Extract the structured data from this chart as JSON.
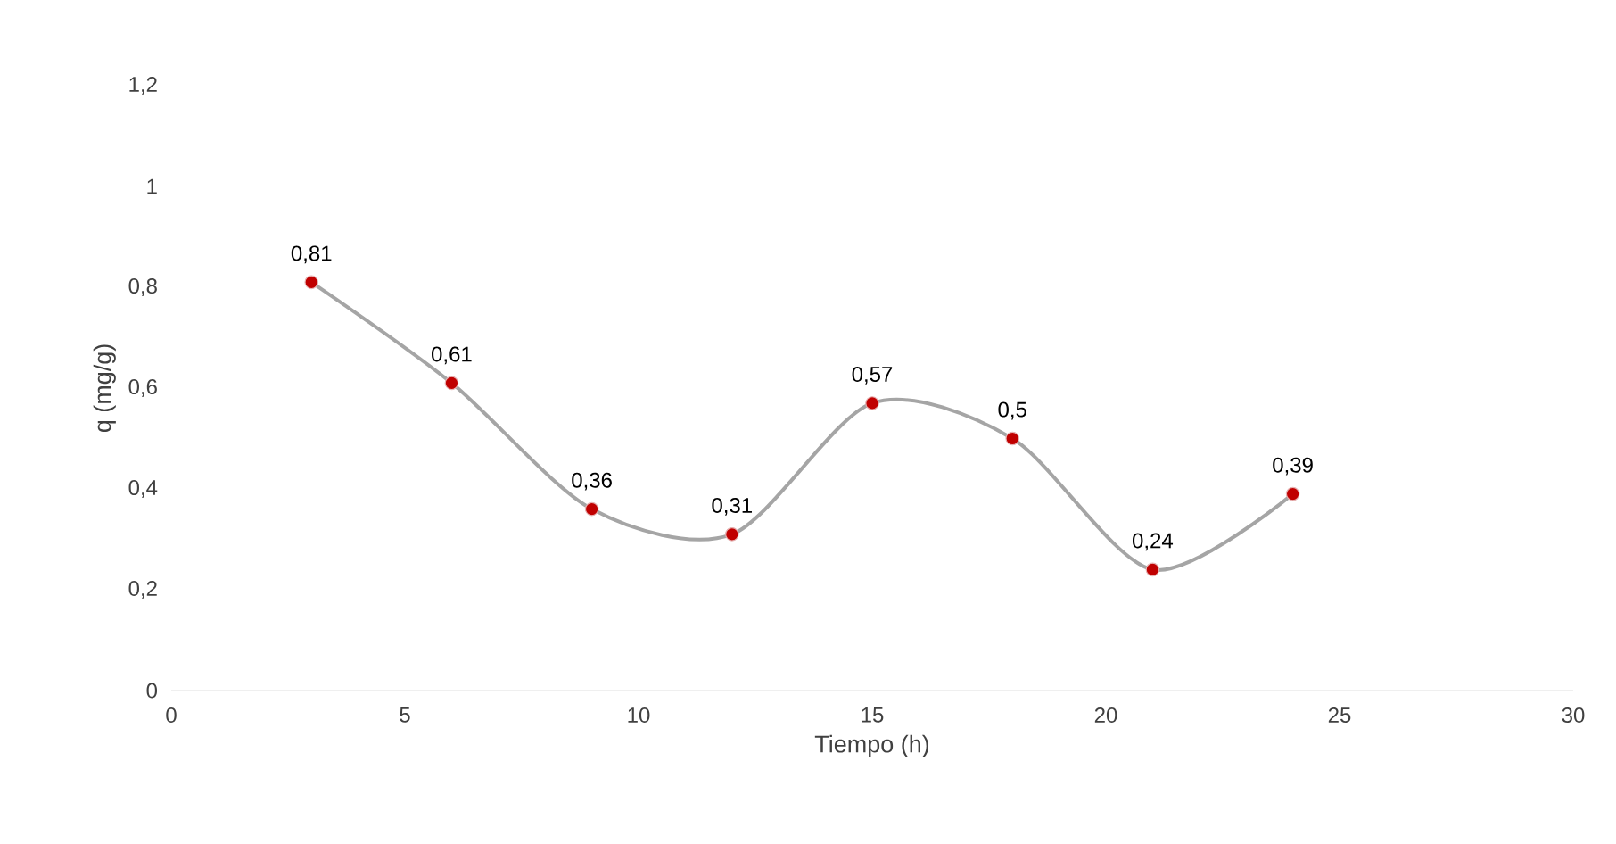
{
  "chart_data": {
    "type": "line",
    "xlabel": "Tiempo (h)",
    "ylabel": "q (mg/g)",
    "x": [
      3,
      6,
      9,
      12,
      15,
      18,
      21,
      24
    ],
    "series": [
      {
        "color": "#a5a5a5",
        "values": [
          0.81,
          0.61,
          0.36,
          0.31,
          0.57,
          0.5,
          0.24,
          0.39
        ],
        "value_labels": [
          "0,81",
          "0,61",
          "0,36",
          "0,31",
          "0,57",
          "0,5",
          "0,24",
          "0,39"
        ],
        "colors": [
          "#c00000",
          "#c00000",
          "#c00000",
          "#c00000",
          "#c00000",
          "#c00000",
          "#c00000",
          "#c00000"
        ]
      }
    ],
    "xlim": [
      0,
      30
    ],
    "xticks": [
      0,
      5,
      10,
      15,
      20,
      25,
      30
    ],
    "ylim": [
      0,
      1.2
    ],
    "yticks": [
      0,
      {
        "value": 0.2,
        "label": "0,2"
      },
      {
        "value": 0.4,
        "label": "0,4"
      },
      {
        "value": 0.6,
        "label": "0,6"
      },
      {
        "value": 0.8,
        "label": "0,8"
      },
      1,
      {
        "value": 1.2,
        "label": "1,2"
      }
    ],
    "grid": false,
    "marker": "circle",
    "line_style": "solid"
  }
}
